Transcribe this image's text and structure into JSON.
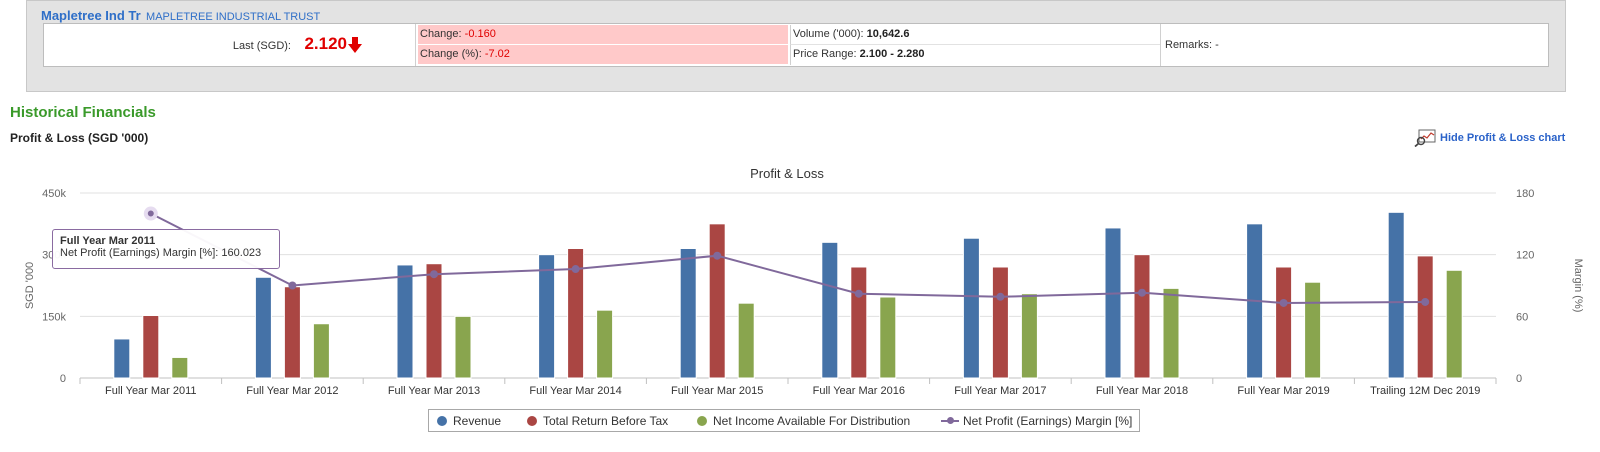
{
  "quote": {
    "short_name": "Mapletree Ind Tr",
    "full_name": "MAPLETREE INDUSTRIAL TRUST",
    "last_label": "Last (SGD):",
    "last_value": "2.120",
    "change_label": "Change:",
    "change_value": "-0.160",
    "change_pct_label": "Change (%):",
    "change_pct_value": "-7.02",
    "volume_label": "Volume ('000):",
    "volume_value": "10,642.6",
    "range_label": "Price Range:",
    "range_value": "2.100 - 2.280",
    "remarks_label": "Remarks:",
    "remarks_value": "-"
  },
  "section": {
    "title": "Historical Financials",
    "subtitle": "Profit & Loss (SGD '000)",
    "hide_link": "Hide Profit & Loss chart"
  },
  "tooltip": {
    "category": "Full Year Mar 2011",
    "series": "Net Profit (Earnings) Margin [%]:",
    "value": "160.023"
  },
  "colors": {
    "revenue": "#4572a7",
    "total_return": "#aa4643",
    "net_income": "#89a54e",
    "margin": "#80699b",
    "down_arrow": "#e00000"
  },
  "chart_data": {
    "type": "bar",
    "title": "Profit & Loss",
    "categories": [
      "Full Year Mar 2011",
      "Full Year Mar 2012",
      "Full Year Mar 2013",
      "Full Year Mar 2014",
      "Full Year Mar 2015",
      "Full Year Mar 2016",
      "Full Year Mar 2017",
      "Full Year Mar 2018",
      "Full Year Mar 2019",
      "Trailing 12M Dec 2019"
    ],
    "ylabel_left": "SGD '000",
    "ylabel_right": "Margin (%)",
    "ylim_left": [
      0,
      450000
    ],
    "ylim_right": [
      0,
      180
    ],
    "y_ticks_left": [
      "0",
      "150k",
      "300k",
      "450k"
    ],
    "y_ticks_right": [
      "0",
      "60",
      "120",
      "180"
    ],
    "grid": true,
    "legend_position": "bottom",
    "series": [
      {
        "name": "Revenue",
        "type": "bar",
        "axis": "left",
        "values": [
          95000,
          245000,
          275000,
          300000,
          315000,
          330000,
          340000,
          365000,
          375000,
          403000
        ]
      },
      {
        "name": "Total Return Before Tax",
        "type": "bar",
        "axis": "left",
        "values": [
          152000,
          222000,
          278000,
          315000,
          375000,
          270000,
          270000,
          300000,
          270000,
          297000
        ]
      },
      {
        "name": "Net Income Available For Distribution",
        "type": "bar",
        "axis": "left",
        "values": [
          50000,
          132000,
          150000,
          165000,
          182000,
          197000,
          205000,
          218000,
          233000,
          262000
        ]
      },
      {
        "name": "Net Profit (Earnings) Margin [%]",
        "type": "line",
        "axis": "right",
        "values": [
          160.023,
          90,
          101,
          106,
          119,
          82,
          79,
          83,
          73,
          74
        ]
      }
    ]
  }
}
